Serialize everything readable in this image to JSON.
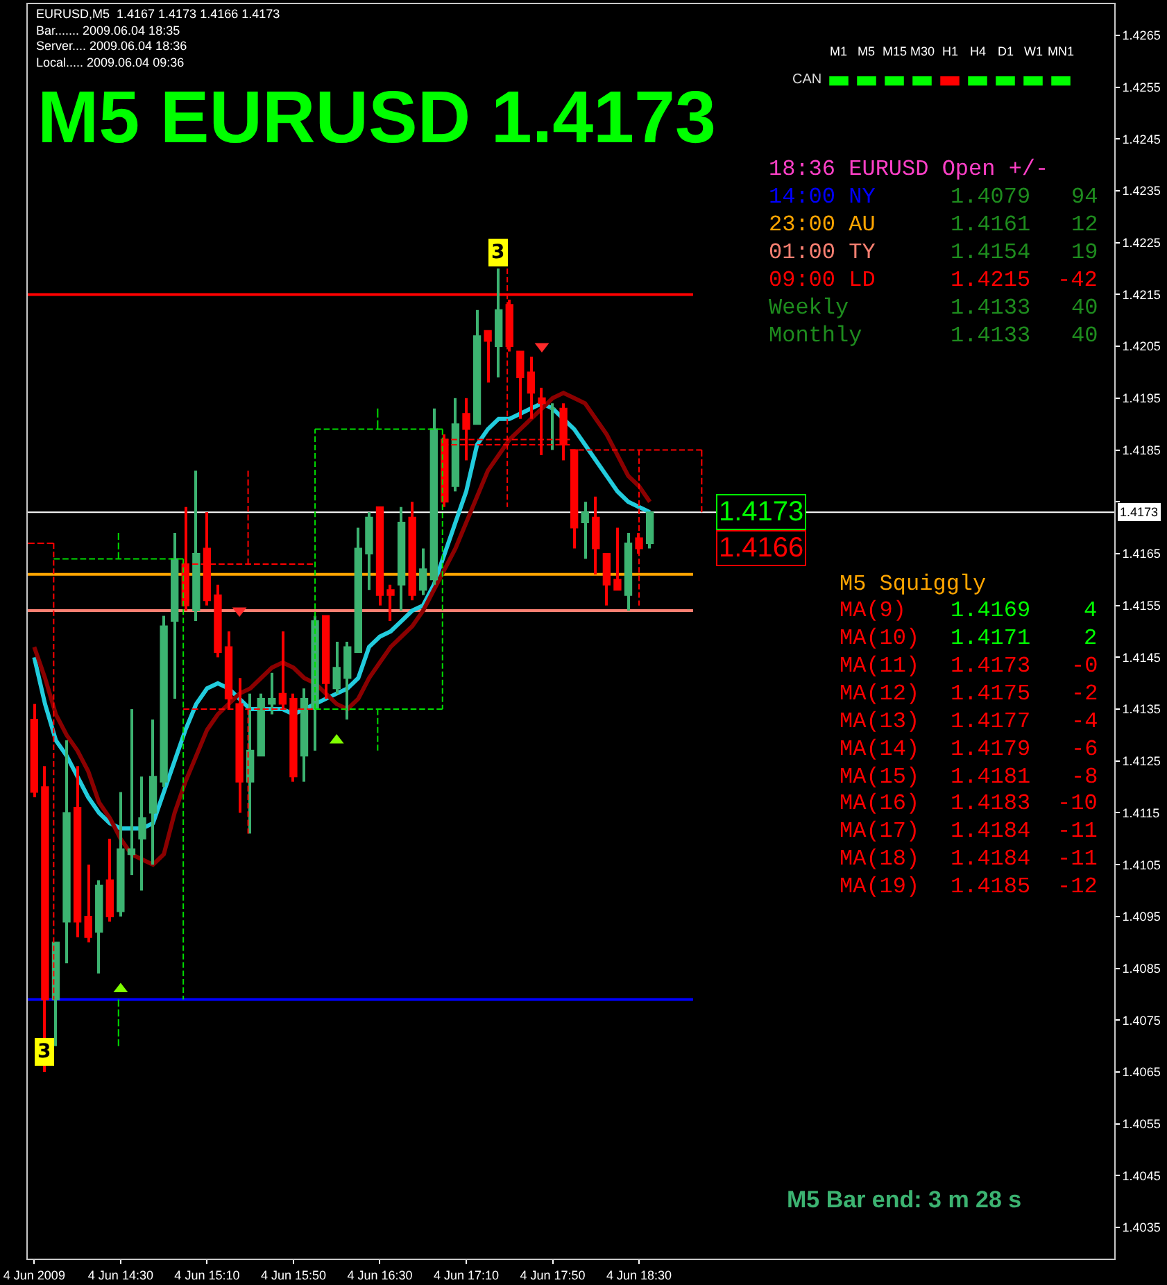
{
  "chart_data": {
    "type": "candlestick",
    "title": "M5 EURUSD 1.4173",
    "x": [
      "2009-06-04T13:50",
      "2009-06-04T13:55",
      "2009-06-04T14:00",
      "2009-06-04T14:05",
      "2009-06-04T14:10",
      "2009-06-04T14:15",
      "2009-06-04T14:20",
      "2009-06-04T14:25",
      "2009-06-04T14:30",
      "2009-06-04T14:35",
      "2009-06-04T14:40",
      "2009-06-04T14:45",
      "2009-06-04T14:50",
      "2009-06-04T14:55",
      "2009-06-04T15:00",
      "2009-06-04T15:05",
      "2009-06-04T15:10",
      "2009-06-04T15:15",
      "2009-06-04T15:20",
      "2009-06-04T15:25",
      "2009-06-04T15:30",
      "2009-06-04T15:35",
      "2009-06-04T15:40",
      "2009-06-04T15:45",
      "2009-06-04T15:50",
      "2009-06-04T15:55",
      "2009-06-04T16:00",
      "2009-06-04T16:05",
      "2009-06-04T16:10",
      "2009-06-04T16:15",
      "2009-06-04T16:20",
      "2009-06-04T16:25",
      "2009-06-04T16:30",
      "2009-06-04T16:35",
      "2009-06-04T16:40",
      "2009-06-04T16:45",
      "2009-06-04T16:50",
      "2009-06-04T16:55",
      "2009-06-04T17:00",
      "2009-06-04T17:05",
      "2009-06-04T17:10",
      "2009-06-04T17:15",
      "2009-06-04T17:20",
      "2009-06-04T17:25",
      "2009-06-04T17:30",
      "2009-06-04T17:35",
      "2009-06-04T17:40",
      "2009-06-04T17:45",
      "2009-06-04T17:50",
      "2009-06-04T17:55",
      "2009-06-04T18:00",
      "2009-06-04T18:05",
      "2009-06-04T18:10",
      "2009-06-04T18:15",
      "2009-06-04T18:20",
      "2009-06-04T18:25",
      "2009-06-04T18:30",
      "2009-06-04T18:35"
    ],
    "ohlc": [
      [
        1.4133,
        1.4136,
        1.4118,
        1.4119
      ],
      [
        1.412,
        1.4124,
        1.4065,
        1.4079
      ],
      [
        1.4079,
        1.409,
        1.407,
        1.409
      ],
      [
        1.4094,
        1.4129,
        1.4086,
        1.4115
      ],
      [
        1.4116,
        1.4124,
        1.4091,
        1.4094
      ],
      [
        1.4095,
        1.4105,
        1.409,
        1.4091
      ],
      [
        1.4092,
        1.4102,
        1.4084,
        1.4101
      ],
      [
        1.4102,
        1.411,
        1.4094,
        1.4095
      ],
      [
        1.4096,
        1.4119,
        1.4095,
        1.4108
      ],
      [
        1.4107,
        1.4135,
        1.4103,
        1.4108
      ],
      [
        1.411,
        1.4122,
        1.41,
        1.4114
      ],
      [
        1.4115,
        1.4133,
        1.4105,
        1.4122
      ],
      [
        1.4121,
        1.4153,
        1.412,
        1.4151
      ],
      [
        1.4152,
        1.4169,
        1.4137,
        1.4164
      ],
      [
        1.4163,
        1.4174,
        1.4154,
        1.4155
      ],
      [
        1.4154,
        1.4181,
        1.4152,
        1.4165
      ],
      [
        1.4166,
        1.4173,
        1.4155,
        1.4156
      ],
      [
        1.4157,
        1.4159,
        1.4145,
        1.4146
      ],
      [
        1.4147,
        1.415,
        1.4135,
        1.4137
      ],
      [
        1.4136,
        1.4141,
        1.4115,
        1.4121
      ],
      [
        1.4121,
        1.4138,
        1.4111,
        1.4127
      ],
      [
        1.4126,
        1.4138,
        1.4126,
        1.4137
      ],
      [
        1.4136,
        1.4142,
        1.4134,
        1.4137
      ],
      [
        1.4138,
        1.415,
        1.4135,
        1.4136
      ],
      [
        1.4137,
        1.4138,
        1.4121,
        1.4122
      ],
      [
        1.4126,
        1.4139,
        1.4121,
        1.4137
      ],
      [
        1.4135,
        1.4153,
        1.4127,
        1.4152
      ],
      [
        1.4153,
        1.4153,
        1.4137,
        1.414
      ],
      [
        1.4139,
        1.4148,
        1.4138,
        1.4143
      ],
      [
        1.4141,
        1.4148,
        1.4133,
        1.4147
      ],
      [
        1.4146,
        1.417,
        1.4146,
        1.4166
      ],
      [
        1.4165,
        1.4173,
        1.4158,
        1.4172
      ],
      [
        1.4174,
        1.4174,
        1.4155,
        1.4157
      ],
      [
        1.4158,
        1.4159,
        1.4152,
        1.4157
      ],
      [
        1.4159,
        1.4174,
        1.4154,
        1.4171
      ],
      [
        1.4172,
        1.4175,
        1.4156,
        1.4157
      ],
      [
        1.4158,
        1.4166,
        1.4157,
        1.4162
      ],
      [
        1.416,
        1.4193,
        1.4159,
        1.4189
      ],
      [
        1.4187,
        1.4188,
        1.4174,
        1.4175
      ],
      [
        1.4178,
        1.4195,
        1.4177,
        1.419
      ],
      [
        1.4192,
        1.4195,
        1.4183,
        1.4189
      ],
      [
        1.419,
        1.4212,
        1.419,
        1.4207
      ],
      [
        1.4208,
        1.4208,
        1.4198,
        1.4206
      ],
      [
        1.4205,
        1.422,
        1.4199,
        1.4212
      ],
      [
        1.4213,
        1.4214,
        1.4204,
        1.4205
      ],
      [
        1.4204,
        1.4204,
        1.4191,
        1.4199
      ],
      [
        1.42,
        1.4203,
        1.4191,
        1.4196
      ],
      [
        1.4195,
        1.4197,
        1.4184,
        1.4194
      ],
      [
        1.4193,
        1.4194,
        1.4185,
        1.4193
      ],
      [
        1.4193,
        1.4194,
        1.4183,
        1.4186
      ],
      [
        1.4185,
        1.4185,
        1.4166,
        1.417
      ],
      [
        1.4171,
        1.4175,
        1.4164,
        1.4173
      ],
      [
        1.4172,
        1.4176,
        1.4161,
        1.4166
      ],
      [
        1.4165,
        1.4165,
        1.4155,
        1.4159
      ],
      [
        1.416,
        1.417,
        1.4158,
        1.4158
      ],
      [
        1.4157,
        1.4169,
        1.4154,
        1.4167
      ],
      [
        1.4168,
        1.4169,
        1.4165,
        1.4166
      ],
      [
        1.4167,
        1.4173,
        1.4166,
        1.4173
      ]
    ],
    "colors": [
      "#ff0000",
      "#ff0000",
      "#3cb371",
      "#3cb371",
      "#ff0000",
      "#ff0000",
      "#3cb371",
      "#ff0000",
      "#3cb371",
      "#3cb371",
      "#3cb371",
      "#3cb371",
      "#3cb371",
      "#3cb371",
      "#ff0000",
      "#3cb371",
      "#ff0000",
      "#ff0000",
      "#ff0000",
      "#ff0000",
      "#3cb371",
      "#3cb371",
      "#3cb371",
      "#ff0000",
      "#ff0000",
      "#3cb371",
      "#3cb371",
      "#ff0000",
      "#3cb371",
      "#3cb371",
      "#3cb371",
      "#3cb371",
      "#ff0000",
      "#ff0000",
      "#3cb371",
      "#ff0000",
      "#3cb371",
      "#3cb371",
      "#ff0000",
      "#3cb371",
      "#ff0000",
      "#3cb371",
      "#ff0000",
      "#3cb371",
      "#ff0000",
      "#ff0000",
      "#ff0000",
      "#ff0000",
      "#3cb371",
      "#ff0000",
      "#ff0000",
      "#3cb371",
      "#ff0000",
      "#ff0000",
      "#ff0000",
      "#3cb371",
      "#ff0000",
      "#3cb371"
    ],
    "series": [
      {
        "type": "line",
        "color": "#22ccdd",
        "values": [
          1.4145,
          1.4136,
          1.4129,
          1.4126,
          1.4122,
          1.4118,
          1.4115,
          1.4113,
          1.4112,
          1.4112,
          1.4112,
          1.4113,
          1.4119,
          1.4125,
          1.4131,
          1.4136,
          1.4139,
          1.414,
          1.4139,
          1.4137,
          1.4135,
          1.4135,
          1.4135,
          1.4135,
          1.4134,
          1.4135,
          1.4136,
          1.4137,
          1.4138,
          1.4139,
          1.4141,
          1.4147,
          1.4149,
          1.415,
          1.4152,
          1.4154,
          1.4155,
          1.4159,
          1.4165,
          1.4171,
          1.4177,
          1.4186,
          1.4189,
          1.4191,
          1.4191,
          1.4192,
          1.4193,
          1.4194,
          1.4193,
          1.4191,
          1.4189,
          1.4186,
          1.4183,
          1.418,
          1.4177,
          1.4175,
          1.4174,
          1.4173
        ]
      },
      {
        "type": "line",
        "color": "#8b0000",
        "values": [
          1.4147,
          1.4141,
          1.4134,
          1.413,
          1.4127,
          1.4123,
          1.4117,
          1.4114,
          1.411,
          1.4107,
          1.4106,
          1.4105,
          1.4107,
          1.4115,
          1.4121,
          1.4126,
          1.4131,
          1.4134,
          1.4136,
          1.4138,
          1.4139,
          1.4141,
          1.4143,
          1.4144,
          1.4143,
          1.4141,
          1.414,
          1.4138,
          1.4136,
          1.4135,
          1.4137,
          1.4141,
          1.4144,
          1.4147,
          1.4149,
          1.4151,
          1.4154,
          1.4158,
          1.4162,
          1.4166,
          1.4171,
          1.4176,
          1.4181,
          1.4184,
          1.4187,
          1.4189,
          1.4191,
          1.4193,
          1.4195,
          1.4196,
          1.4195,
          1.4194,
          1.4191,
          1.4188,
          1.4184,
          1.418,
          1.4178,
          1.4175
        ]
      },
      {
        "type": "scatter",
        "color": "#7fff00",
        "marker": "triangle",
        "x": [
          "2009-06-04T14:30",
          "2009-06-04T16:10"
        ],
        "values": [
          1.4081,
          1.4129
        ]
      },
      {
        "type": "scatter",
        "color": "#ff2a2a",
        "marker": "triangle",
        "x": [
          "2009-06-04T15:25",
          "2009-06-04T17:45"
        ],
        "values": [
          1.4154,
          1.4205
        ]
      },
      {
        "type": "line",
        "color": "#ff0000",
        "line_style": "dashed",
        "x": [
          "2009-06-04T13:47",
          "2009-06-04T13:59"
        ],
        "values": [
          1.4167,
          1.4167
        ]
      },
      {
        "type": "line",
        "color": "#ff0000",
        "line_style": "dashed",
        "x": [
          "2009-06-04T13:59",
          "2009-06-04T13:59"
        ],
        "values": [
          1.4167,
          1.4079
        ]
      },
      {
        "type": "line",
        "color": "#00dd00",
        "line_style": "dashed",
        "x": [
          "2009-06-04T13:59",
          "2009-06-04T14:59"
        ],
        "values": [
          1.4164,
          1.4164
        ]
      },
      {
        "type": "line",
        "color": "#00dd00",
        "line_style": "dashed",
        "x": [
          "2009-06-04T14:59",
          "2009-06-04T14:59"
        ],
        "values": [
          1.4164,
          1.4079
        ]
      },
      {
        "type": "line",
        "color": "#00dd00",
        "line_style": "dashed",
        "x": [
          "2009-06-04T14:29",
          "2009-06-04T14:29"
        ],
        "values": [
          1.4169,
          1.4164
        ]
      },
      {
        "type": "line",
        "color": "#00dd00",
        "line_style": "dashed",
        "x": [
          "2009-06-04T14:29",
          "2009-06-04T14:29"
        ],
        "values": [
          1.4079,
          1.407
        ]
      },
      {
        "type": "line",
        "color": "#ff0000",
        "line_style": "dashed",
        "x": [
          "2009-06-04T14:59",
          "2009-06-04T15:59"
        ],
        "values": [
          1.4163,
          1.4163
        ]
      },
      {
        "type": "line",
        "color": "#ff0000",
        "line_style": "dashed",
        "x": [
          "2009-06-04T14:59",
          "2009-06-04T15:59"
        ],
        "values": [
          1.4135,
          1.4135
        ]
      },
      {
        "type": "line",
        "color": "#ff0000",
        "line_style": "dashed",
        "x": [
          "2009-06-04T15:29",
          "2009-06-04T15:29"
        ],
        "values": [
          1.4181,
          1.4163
        ]
      },
      {
        "type": "line",
        "color": "#ff0000",
        "line_style": "dashed",
        "x": [
          "2009-06-04T15:29",
          "2009-06-04T15:29"
        ],
        "values": [
          1.4135,
          1.4111
        ]
      },
      {
        "type": "line",
        "color": "#00dd00",
        "line_style": "dashed",
        "x": [
          "2009-06-04T16:00",
          "2009-06-04T16:00"
        ],
        "values": [
          1.4135,
          1.4189
        ]
      },
      {
        "type": "line",
        "color": "#00dd00",
        "line_style": "dashed",
        "x": [
          "2009-06-04T16:00",
          "2009-06-04T16:59"
        ],
        "values": [
          1.4189,
          1.4189
        ]
      },
      {
        "type": "line",
        "color": "#00dd00",
        "line_style": "dashed",
        "x": [
          "2009-06-04T16:59",
          "2009-06-04T16:59"
        ],
        "values": [
          1.4189,
          1.4135
        ]
      },
      {
        "type": "line",
        "color": "#00dd00",
        "line_style": "dashed",
        "x": [
          "2009-06-04T16:00",
          "2009-06-04T16:59"
        ],
        "values": [
          1.4135,
          1.4135
        ]
      },
      {
        "type": "line",
        "color": "#00dd00",
        "line_style": "dashed",
        "x": [
          "2009-06-04T16:29",
          "2009-06-04T16:29"
        ],
        "values": [
          1.4193,
          1.4189
        ]
      },
      {
        "type": "line",
        "color": "#00dd00",
        "line_style": "dashed",
        "x": [
          "2009-06-04T16:29",
          "2009-06-04T16:29"
        ],
        "values": [
          1.4135,
          1.4127
        ]
      },
      {
        "type": "line",
        "color": "#ff0000",
        "line_style": "dashed",
        "x": [
          "2009-06-04T16:59",
          "2009-06-04T17:58"
        ],
        "values": [
          1.4187,
          1.4187
        ]
      },
      {
        "type": "line",
        "color": "#ff0000",
        "line_style": "dashed",
        "x": [
          "2009-06-04T16:59",
          "2009-06-04T17:58"
        ],
        "values": [
          1.4186,
          1.4186
        ]
      },
      {
        "type": "line",
        "color": "#ff0000",
        "line_style": "dashed",
        "x": [
          "2009-06-04T17:29",
          "2009-06-04T17:29"
        ],
        "values": [
          1.422,
          1.4174
        ]
      },
      {
        "type": "line",
        "color": "#ff0000",
        "line_style": "dashed",
        "x": [
          "2009-06-04T17:58",
          "2009-06-04T18:59"
        ],
        "values": [
          1.4185,
          1.4185
        ]
      },
      {
        "type": "line",
        "color": "#ff0000",
        "line_style": "dashed",
        "x": [
          "2009-06-04T18:59",
          "2009-06-04T18:59"
        ],
        "values": [
          1.4185,
          1.4173
        ]
      },
      {
        "type": "line",
        "color": "#ff0000",
        "line_style": "dashed",
        "x": [
          "2009-06-04T18:30",
          "2009-06-04T18:30"
        ],
        "values": [
          1.4185,
          1.4155
        ]
      }
    ],
    "xlim": [
      "2009-06-04T13:47",
      "2009-06-04T22:10"
    ],
    "xticks": [
      {
        "value": "2009-06-04T13:50",
        "label": "4 Jun 2009"
      },
      {
        "value": "2009-06-04T14:30",
        "label": "4 Jun 14:30"
      },
      {
        "value": "2009-06-04T15:10",
        "label": "4 Jun 15:10"
      },
      {
        "value": "2009-06-04T15:50",
        "label": "4 Jun 15:50"
      },
      {
        "value": "2009-06-04T16:30",
        "label": "4 Jun 16:30"
      },
      {
        "value": "2009-06-04T17:10",
        "label": "4 Jun 17:10"
      },
      {
        "value": "2009-06-04T17:50",
        "label": "4 Jun 17:50"
      },
      {
        "value": "2009-06-04T18:30",
        "label": "4 Jun 18:30"
      }
    ],
    "ylim": [
      1.4029,
      1.4271
    ],
    "yticks": [
      1.4035,
      1.4045,
      1.4055,
      1.4065,
      1.4075,
      1.4085,
      1.4095,
      1.4105,
      1.4115,
      1.4125,
      1.4135,
      1.4145,
      1.4155,
      1.4165,
      {
        "value": 1.4175,
        "label": null
      },
      1.4185,
      1.4195,
      1.4205,
      1.4215,
      1.4225,
      1.4235,
      1.4245,
      1.4255,
      1.4265
    ],
    "ref_lines": [
      {
        "axis": "y",
        "value": 1.4215,
        "color": "#ff0000"
      },
      {
        "axis": "y",
        "value": 1.4161,
        "color": "#ffa500"
      },
      {
        "axis": "y",
        "value": 1.4154,
        "color": "#fa8072"
      },
      {
        "axis": "y",
        "value": 1.4079,
        "color": "#0000ff"
      },
      {
        "axis": "y",
        "value": 1.4173,
        "label": "1.4173",
        "color": "#ffffff"
      }
    ],
    "annotations": [
      "EURUSD,M5  1.4167 1.4173 1.4166 1.4173",
      "Bar....... 2009.06.04 18:35",
      "Server.... 2009.06.04 18:36",
      "Local..... 2009.06.04 09:36",
      "M1",
      "M5",
      "M15",
      "M30",
      "H1",
      "H4",
      "D1",
      "W1",
      "MN1",
      "CAN",
      "▬",
      "▬",
      "▬",
      "▬",
      "▬",
      "▬",
      "▬",
      "▬",
      "▬",
      "18:36 EURUSD Open +/-",
      "14:00 NY",
      "1.4079",
      "94",
      "23:00 AU",
      "1.4161",
      "12",
      "01:00 TY",
      "1.4154",
      "19",
      "09:00 LD",
      "1.4215",
      "-42",
      "Weekly",
      "1.4133",
      "40",
      "Monthly",
      "1.4133",
      "40",
      "M5 Squiggly",
      "MA(9)",
      "1.4169",
      "4",
      "MA(10)",
      "1.4171",
      "2",
      "MA(11)",
      "1.4173",
      "-0",
      "MA(12)",
      "1.4175",
      "-2",
      "MA(13)",
      "1.4177",
      "-4",
      "MA(14)",
      "1.4179",
      "-6",
      "MA(15)",
      "1.4181",
      "-8",
      "MA(16)",
      "1.4183",
      "-10",
      "MA(17)",
      "1.4184",
      "-11",
      "MA(18)",
      "1.4184",
      "-11",
      "MA(19)",
      "1.4185",
      "-12",
      "M5 Bar end: 3 m 28 s",
      {
        "text": "3",
        "x": "2009-06-04T17:25",
        "y": 1.4223
      },
      {
        "text": "3",
        "x": "2009-06-04T13:55",
        "y": 1.4069
      },
      {
        "text": "1.4173",
        "x": "2009-06-04T18:35",
        "y": 1.4173
      },
      {
        "text": "1.4166",
        "x": "2009-06-04T18:35",
        "y": 1.4166
      }
    ]
  }
}
